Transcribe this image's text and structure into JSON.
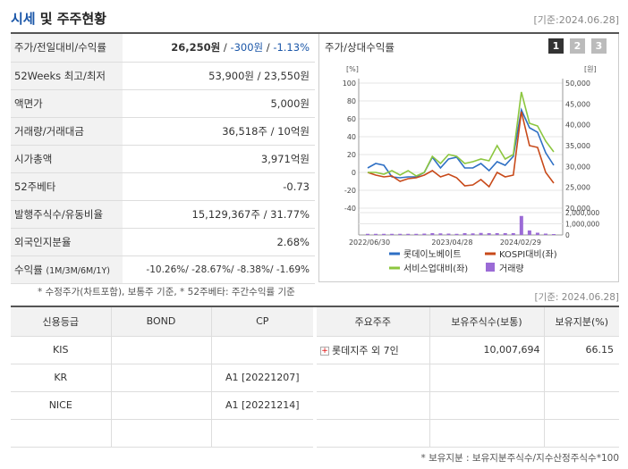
{
  "header": {
    "title_blue": "시세",
    "title_rest": "및 주주현황",
    "date": "[기준:2024.06.28]"
  },
  "info": [
    {
      "label": "주가/전일대비/수익률",
      "price": "26,250원",
      "change": "-300원",
      "rate": "-1.13%"
    },
    {
      "label": "52Weeks 최고/최저",
      "value": "53,900원 / 23,550원"
    },
    {
      "label": "액면가",
      "value": "5,000원"
    },
    {
      "label": "거래량/거래대금",
      "value": "36,518주 / 10억원"
    },
    {
      "label": "시가총액",
      "value": "3,971억원"
    },
    {
      "label": "52주베타",
      "value": "-0.73"
    },
    {
      "label": "발행주식수/유동비율",
      "value": "15,129,367주 / 31.77%"
    },
    {
      "label": "외국인지분율",
      "value": "2.68%"
    },
    {
      "label": "수익률",
      "label_small": "(1M/3M/6M/1Y)",
      "value": "-10.26%/ -28.67%/ -8.38%/ -1.69%"
    }
  ],
  "chart_panel": {
    "title": "주가/상대수익률",
    "pages": [
      "1",
      "2",
      "3"
    ]
  },
  "chart_data": {
    "type": "line",
    "x_ticks": [
      "2022/06/30",
      "2023/04/28",
      "2024/02/29"
    ],
    "left_axis_unit": "[%]",
    "left_ticks": [
      "100",
      "80",
      "60",
      "40",
      "20",
      "0",
      "-20",
      "-40"
    ],
    "right_axis_unit": "[원]",
    "right_ticks": [
      "50,000",
      "45,000",
      "40,000",
      "35,000",
      "30,000",
      "25,000",
      "20,000"
    ],
    "volume_ticks": [
      "2,000,000",
      "1,000,000",
      "0"
    ],
    "ylim_left": [
      -40,
      100
    ],
    "series": [
      {
        "name": "롯데이노베이트",
        "color": "#2e6fc4",
        "values": [
          5,
          10,
          8,
          -5,
          -6,
          -5,
          -5,
          0,
          17,
          5,
          15,
          17,
          5,
          5,
          10,
          2,
          12,
          8,
          18,
          70,
          50,
          45,
          22,
          8
        ]
      },
      {
        "name": "KOSPI대비(좌)",
        "color": "#c84a1a",
        "values": [
          0,
          -3,
          -5,
          -4,
          -10,
          -7,
          -6,
          -3,
          2,
          -5,
          -2,
          -6,
          -15,
          -14,
          -8,
          -16,
          0,
          -5,
          -3,
          68,
          30,
          28,
          0,
          -12
        ]
      },
      {
        "name": "서비스업대비(좌)",
        "color": "#8cc63f",
        "values": [
          0,
          0,
          -2,
          2,
          -3,
          2,
          -4,
          0,
          18,
          10,
          20,
          18,
          10,
          12,
          15,
          13,
          30,
          15,
          20,
          90,
          55,
          52,
          35,
          23
        ]
      }
    ],
    "volume_series": {
      "name": "거래량",
      "color": "#9b6bd6",
      "values": [
        0.05,
        0.05,
        0.05,
        0.05,
        0.05,
        0.05,
        0.05,
        0.06,
        0.08,
        0.07,
        0.06,
        0.05,
        0.08,
        0.07,
        0.09,
        0.08,
        0.08,
        0.08,
        0.08,
        0.85,
        0.2,
        0.1,
        0.06,
        0.04
      ]
    }
  },
  "notes": {
    "left": "* 수정주가(차트포함), 보통주 기준, * 52주베타: 주간수익률 기준",
    "right": "[기준: 2024.06.28]",
    "bottom": "* 보유지분 : 보유지분주식수/지수산정주식수*100"
  },
  "credit": {
    "headers": [
      "신용등급",
      "BOND",
      "CP"
    ],
    "rows": [
      [
        "KIS",
        "",
        ""
      ],
      [
        "KR",
        "",
        "A1 [20221207]"
      ],
      [
        "NICE",
        "",
        "A1 [20221214]"
      ],
      [
        "",
        "",
        ""
      ]
    ]
  },
  "holders": {
    "headers": [
      "주요주주",
      "보유주식수(보통)",
      "보유지분(%)"
    ],
    "rows": [
      [
        "롯데지주 외 7인",
        "10,007,694",
        "66.15"
      ],
      [
        "",
        "",
        ""
      ],
      [
        "",
        "",
        ""
      ],
      [
        "",
        "",
        ""
      ]
    ]
  }
}
